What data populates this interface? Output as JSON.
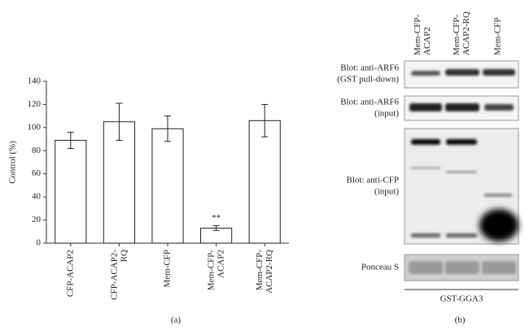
{
  "chart_data": {
    "type": "bar",
    "ylabel": "Control (%)",
    "categories": [
      "CFP-ACAP2",
      "CFP-ACAP2-\nRQ",
      "Mem-CFP",
      "Mem-CFP-\nACAP2",
      "Mem-CFP-\nACAP2-RQ"
    ],
    "values": [
      89,
      105,
      99,
      13,
      106
    ],
    "errors": [
      7,
      16,
      11,
      2,
      14
    ],
    "color": "#ffffff",
    "ylim": [
      0,
      140
    ],
    "yticks": [
      0,
      20,
      40,
      60,
      80,
      100,
      120,
      140
    ],
    "annotations": [
      {
        "text": "**",
        "category": 3
      }
    ],
    "panel_label": "(a)"
  },
  "blot": {
    "lanes": [
      "Mem-CFP-\nACAP2",
      "Mem-CFP-\nACAP2-RQ",
      "Mem-CFP"
    ],
    "rows": [
      {
        "label": [
          "Blot: anti-ARF6",
          "(GST pull-down)"
        ]
      },
      {
        "label": [
          "Blot: anti-ARF6",
          "(input)"
        ]
      },
      {
        "label": [
          "Blot: anti-CFP",
          "(input)"
        ]
      },
      {
        "label": [
          "Ponceau S"
        ]
      }
    ],
    "bait": "GST-GGA3",
    "panel_label": "(b)"
  }
}
